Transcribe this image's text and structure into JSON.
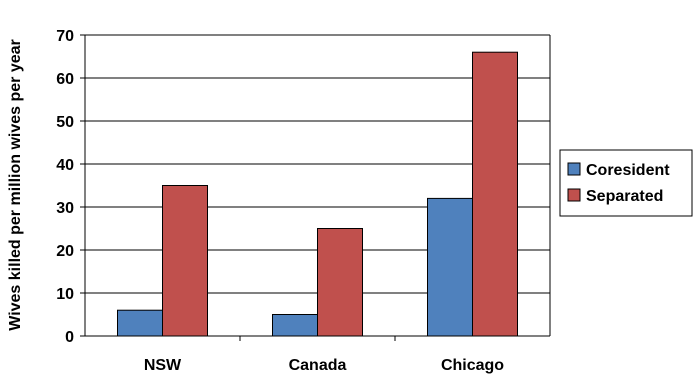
{
  "chart_data": {
    "type": "bar",
    "categories": [
      "NSW",
      "Canada",
      "Chicago"
    ],
    "series": [
      {
        "name": "Coresident",
        "values": [
          6,
          5,
          32
        ],
        "color": "#4f81bd"
      },
      {
        "name": "Separated",
        "values": [
          35,
          25,
          66
        ],
        "color": "#c0504d"
      }
    ],
    "title": "",
    "xlabel": "",
    "ylabel": "Wives killed per million wives per year",
    "ylim": [
      0,
      70
    ],
    "yticks": [
      0,
      10,
      20,
      30,
      40,
      50,
      60,
      70
    ],
    "grid": true,
    "legend_position": "right"
  }
}
